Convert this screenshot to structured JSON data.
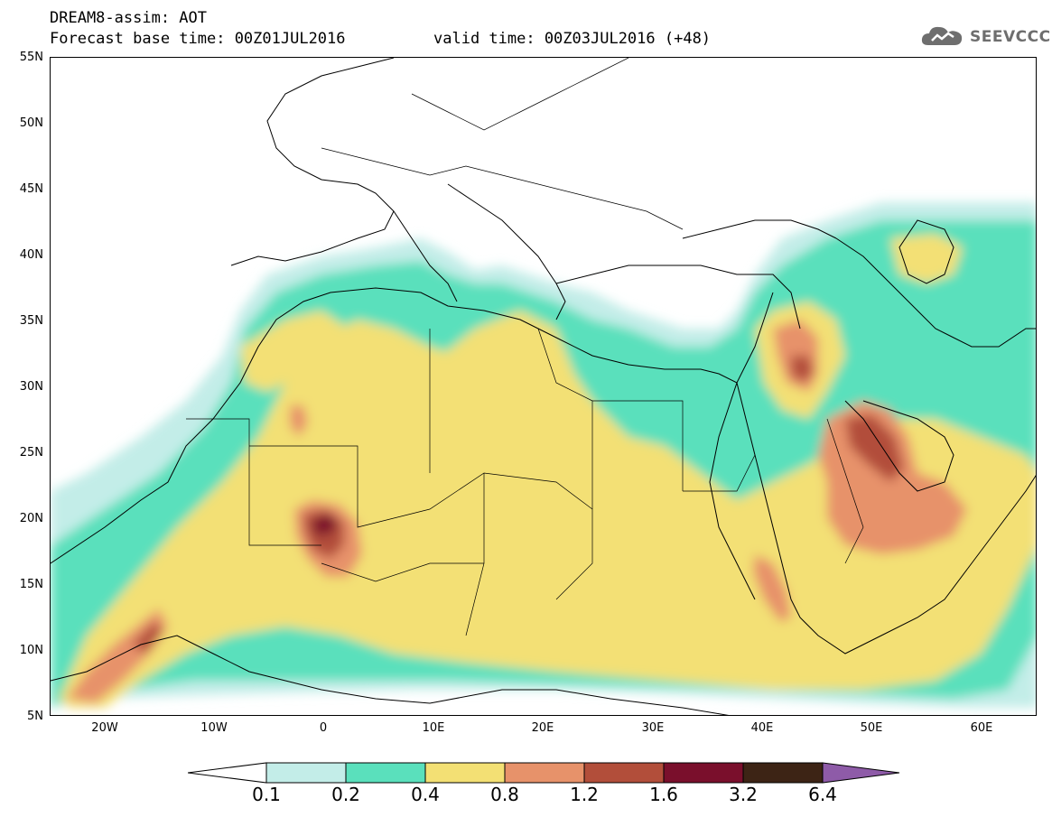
{
  "header": {
    "title": "DREAM8-assim: AOT",
    "base_time": "Forecast base time: 00Z01JUL2016",
    "valid_time": "valid time: 00Z03JUL2016 (+48)",
    "logo_text": "SEEVCCC",
    "logo_icon": "cloud-icon"
  },
  "map": {
    "lon_range": [
      -25,
      65
    ],
    "lat_range": [
      5,
      55
    ],
    "lat_labels": [
      "55N",
      "50N",
      "45N",
      "40N",
      "35N",
      "30N",
      "25N",
      "20N",
      "15N",
      "10N",
      "5N"
    ],
    "lon_labels": [
      "20W",
      "10W",
      "0",
      "10E",
      "20E",
      "30E",
      "40E",
      "50E",
      "60E"
    ],
    "variable": "AOT"
  },
  "legend": {
    "levels": [
      "0.1",
      "0.2",
      "0.4",
      "0.8",
      "1.2",
      "1.6",
      "3.2",
      "6.4"
    ],
    "colors": {
      "lt01": "#ffffff",
      "b01_02": "#c3ede8",
      "b02_04": "#5ae0bc",
      "b04_08": "#f3e074",
      "b08_12": "#e7926a",
      "b12_16": "#b24e3a",
      "b16_32": "#7a0f2c",
      "b32_64": "#3d2415",
      "gt64": "#8e5ba8"
    }
  }
}
